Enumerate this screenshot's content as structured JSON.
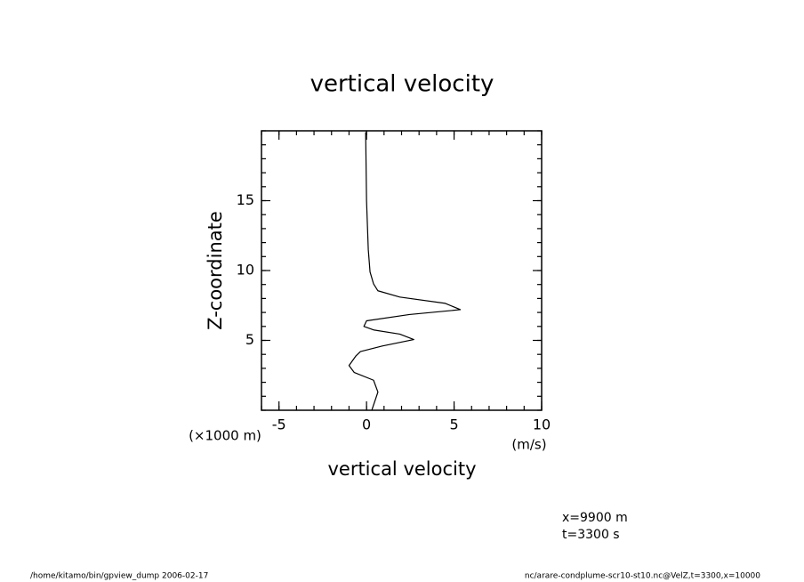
{
  "chart_data": {
    "type": "line",
    "title": "vertical velocity",
    "xlabel": "vertical velocity",
    "xunit": "(m/s)",
    "ylabel": "Z-coordinate",
    "yunit": "(×1000 m)",
    "x": [
      0.3,
      0.65,
      0.4,
      -0.7,
      -1.0,
      -0.6,
      -0.35,
      0.9,
      2.7,
      1.9,
      0.4,
      -0.15,
      0,
      2.45,
      5.36,
      4.5,
      1.9,
      0.65,
      0.4,
      0.2,
      0.1,
      0,
      -0.05
    ],
    "y": [
      0,
      1.3,
      2.15,
      2.7,
      3.2,
      3.9,
      4.2,
      4.6,
      5.06,
      5.45,
      5.75,
      6.0,
      6.4,
      6.85,
      7.2,
      7.65,
      8.1,
      8.55,
      9.05,
      9.9,
      11.5,
      15,
      19.9
    ],
    "color": "#000000",
    "xlim": [
      -6,
      10
    ],
    "xticks": [
      -5,
      0,
      5,
      10
    ],
    "ylim": [
      0,
      20
    ],
    "yticks": [
      5,
      10,
      15
    ],
    "annotations": [
      "x=9900 m",
      "t=3300 s"
    ],
    "footer_left": "/home/kitamo/bin/gpview_dump  2006-02-17",
    "footer_right": "nc/arare-condplume-scr10-st10.nc@VelZ,t=3300,x=10000"
  }
}
